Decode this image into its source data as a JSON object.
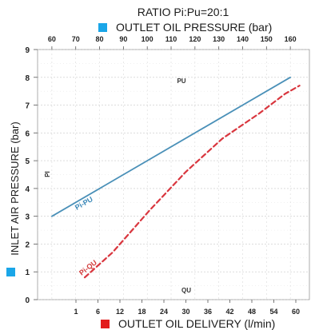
{
  "chart_data": {
    "type": "line",
    "title": "RATIO Pi:Pu=20:1",
    "top_axis": {
      "label": "OUTLET OIL PRESSURE (bar)",
      "ticks": [
        60,
        70,
        80,
        90,
        100,
        110,
        120,
        130,
        140,
        150,
        160
      ],
      "range": [
        54,
        168
      ],
      "legend_color": "#1aa6e8"
    },
    "bottom_axis": {
      "label": "OUTLET OIL DELIVERY (l/min)",
      "ticks": [
        "1",
        "6",
        "12",
        "18",
        "24",
        "30",
        "36",
        "42",
        "48",
        "54",
        "60"
      ],
      "legend_color": "#e21b1b"
    },
    "left_axis": {
      "label": "INLET AIR PRESSURE (bar)",
      "ticks": [
        0,
        1,
        2,
        3,
        4,
        5,
        6,
        7,
        8,
        9
      ],
      "range": [
        0,
        9
      ],
      "legend_color": "#1aa6e8"
    },
    "annotations": {
      "pu": "PU",
      "pi": "PI",
      "qu": "QU"
    },
    "series": [
      {
        "name": "Pi-PU",
        "axis": "top",
        "color": "#4a90b8",
        "style": "solid",
        "x": [
          60,
          160
        ],
        "y": [
          3.0,
          8.0
        ]
      },
      {
        "name": "Pi-QU",
        "axis": "bottom",
        "color": "#d9363e",
        "style": "dashed",
        "x": [
          3,
          10,
          20,
          30,
          40,
          50,
          57,
          61
        ],
        "y": [
          0.8,
          1.7,
          3.2,
          4.6,
          5.8,
          6.7,
          7.4,
          7.7
        ]
      }
    ],
    "grid": true
  }
}
